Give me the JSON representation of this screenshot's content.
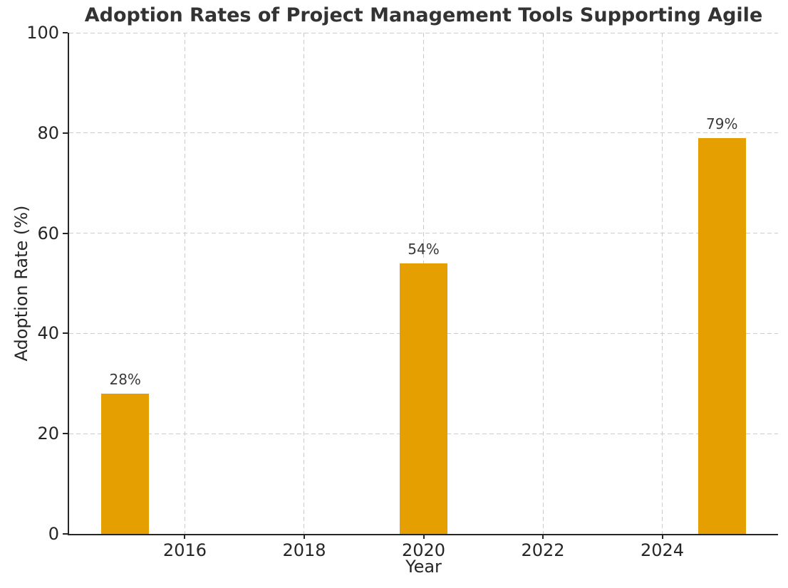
{
  "chart_data": {
    "type": "bar",
    "title": "Adoption Rates of Project Management Tools Supporting Agile",
    "xlabel": "Year",
    "ylabel": "Adoption Rate (%)",
    "x": [
      2015,
      2020,
      2025
    ],
    "values": [
      28,
      54,
      79
    ],
    "bar_labels": [
      "28%",
      "54%",
      "79%"
    ],
    "bar_width_years": 0.8,
    "x_ticks": [
      2016,
      2018,
      2020,
      2022,
      2024
    ],
    "x_tick_labels": [
      "2016",
      "2018",
      "2020",
      "2022",
      "2024"
    ],
    "y_ticks": [
      0,
      20,
      40,
      60,
      80,
      100
    ],
    "y_tick_labels": [
      "0",
      "20",
      "40",
      "60",
      "80",
      "100"
    ],
    "xlim": [
      2014.06,
      2025.94
    ],
    "ylim": [
      0,
      100
    ],
    "grid": "both-dashed",
    "legend": "none",
    "colors": {
      "bar": "#E69F00",
      "grid": "#cccccc",
      "axis": "#262626",
      "title_text": "#333333",
      "tick_text": "#262626",
      "annotation_text": "#3a3a3a",
      "background": "#ffffff"
    }
  }
}
